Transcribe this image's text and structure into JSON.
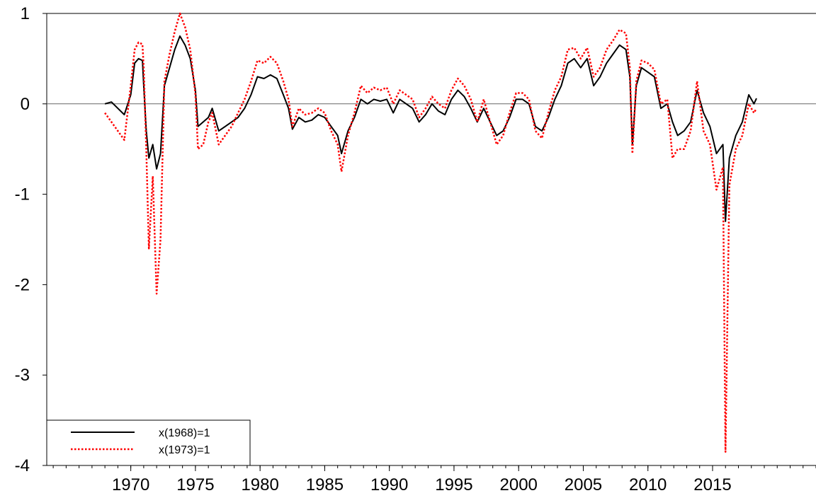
{
  "chart_data": {
    "type": "line",
    "title": "",
    "xlabel": "",
    "ylabel": "",
    "xlim": [
      1963.5,
      2023.0
    ],
    "ylim": [
      -4,
      1
    ],
    "grid": false,
    "zero_line": true,
    "legend_placement": "bottom-left",
    "y_ticks": [
      1,
      0,
      -1,
      -2,
      -3,
      -4
    ],
    "x_ticks": [
      1970,
      1975,
      1980,
      1985,
      1990,
      1995,
      2000,
      2005,
      2010,
      2015
    ],
    "series": [
      {
        "name": "x(1968)=1",
        "color": "#000000",
        "style": "solid",
        "points": [
          [
            1968.0,
            0.0
          ],
          [
            1968.5,
            0.02
          ],
          [
            1969.0,
            -0.05
          ],
          [
            1969.5,
            -0.12
          ],
          [
            1970.0,
            0.1
          ],
          [
            1970.3,
            0.45
          ],
          [
            1970.6,
            0.5
          ],
          [
            1970.9,
            0.48
          ],
          [
            1971.0,
            0.2
          ],
          [
            1971.2,
            -0.3
          ],
          [
            1971.4,
            -0.6
          ],
          [
            1971.7,
            -0.45
          ],
          [
            1972.0,
            -0.72
          ],
          [
            1972.3,
            -0.55
          ],
          [
            1972.6,
            0.2
          ],
          [
            1973.0,
            0.4
          ],
          [
            1973.4,
            0.6
          ],
          [
            1973.8,
            0.75
          ],
          [
            1974.2,
            0.65
          ],
          [
            1974.6,
            0.5
          ],
          [
            1975.0,
            0.15
          ],
          [
            1975.2,
            -0.25
          ],
          [
            1975.6,
            -0.2
          ],
          [
            1976.0,
            -0.15
          ],
          [
            1976.3,
            -0.05
          ],
          [
            1976.8,
            -0.3
          ],
          [
            1977.3,
            -0.25
          ],
          [
            1977.8,
            -0.2
          ],
          [
            1978.3,
            -0.15
          ],
          [
            1978.8,
            -0.05
          ],
          [
            1979.3,
            0.1
          ],
          [
            1979.8,
            0.3
          ],
          [
            1980.3,
            0.28
          ],
          [
            1980.8,
            0.32
          ],
          [
            1981.3,
            0.28
          ],
          [
            1981.8,
            0.1
          ],
          [
            1982.2,
            -0.05
          ],
          [
            1982.5,
            -0.28
          ],
          [
            1983.0,
            -0.15
          ],
          [
            1983.5,
            -0.2
          ],
          [
            1984.0,
            -0.18
          ],
          [
            1984.5,
            -0.12
          ],
          [
            1985.0,
            -0.15
          ],
          [
            1985.5,
            -0.25
          ],
          [
            1986.0,
            -0.35
          ],
          [
            1986.3,
            -0.55
          ],
          [
            1986.8,
            -0.3
          ],
          [
            1987.3,
            -0.15
          ],
          [
            1987.8,
            0.05
          ],
          [
            1988.3,
            0.0
          ],
          [
            1988.8,
            0.05
          ],
          [
            1989.3,
            0.03
          ],
          [
            1989.8,
            0.05
          ],
          [
            1990.3,
            -0.1
          ],
          [
            1990.8,
            0.05
          ],
          [
            1991.3,
            0.0
          ],
          [
            1991.8,
            -0.05
          ],
          [
            1992.3,
            -0.2
          ],
          [
            1992.8,
            -0.12
          ],
          [
            1993.3,
            0.0
          ],
          [
            1993.8,
            -0.08
          ],
          [
            1994.3,
            -0.12
          ],
          [
            1994.8,
            0.05
          ],
          [
            1995.3,
            0.15
          ],
          [
            1995.8,
            0.08
          ],
          [
            1996.3,
            -0.05
          ],
          [
            1996.8,
            -0.2
          ],
          [
            1997.3,
            -0.05
          ],
          [
            1997.8,
            -0.2
          ],
          [
            1998.3,
            -0.35
          ],
          [
            1998.8,
            -0.3
          ],
          [
            1999.3,
            -0.15
          ],
          [
            1999.8,
            0.05
          ],
          [
            2000.3,
            0.05
          ],
          [
            2000.8,
            0.0
          ],
          [
            2001.3,
            -0.25
          ],
          [
            2001.8,
            -0.3
          ],
          [
            2002.3,
            -0.15
          ],
          [
            2002.8,
            0.05
          ],
          [
            2003.3,
            0.2
          ],
          [
            2003.8,
            0.45
          ],
          [
            2004.3,
            0.5
          ],
          [
            2004.8,
            0.4
          ],
          [
            2005.3,
            0.5
          ],
          [
            2005.8,
            0.2
          ],
          [
            2006.3,
            0.3
          ],
          [
            2006.8,
            0.45
          ],
          [
            2007.3,
            0.55
          ],
          [
            2007.8,
            0.65
          ],
          [
            2008.3,
            0.6
          ],
          [
            2008.6,
            0.3
          ],
          [
            2008.8,
            -0.45
          ],
          [
            2009.1,
            0.2
          ],
          [
            2009.5,
            0.4
          ],
          [
            2010.0,
            0.35
          ],
          [
            2010.5,
            0.3
          ],
          [
            2011.0,
            -0.05
          ],
          [
            2011.5,
            0.0
          ],
          [
            2011.9,
            -0.2
          ],
          [
            2012.3,
            -0.35
          ],
          [
            2012.8,
            -0.3
          ],
          [
            2013.3,
            -0.2
          ],
          [
            2013.8,
            0.15
          ],
          [
            2014.3,
            -0.1
          ],
          [
            2014.8,
            -0.25
          ],
          [
            2015.3,
            -0.55
          ],
          [
            2015.8,
            -0.45
          ],
          [
            2016.0,
            -1.3
          ],
          [
            2016.3,
            -0.6
          ],
          [
            2016.8,
            -0.35
          ],
          [
            2017.3,
            -0.2
          ],
          [
            2017.8,
            0.1
          ],
          [
            2018.2,
            0.0
          ],
          [
            2018.4,
            0.06
          ]
        ]
      },
      {
        "name": "x(1973)=1",
        "color": "#ff0000",
        "style": "dotted",
        "points": [
          [
            1968.0,
            -0.1
          ],
          [
            1968.5,
            -0.2
          ],
          [
            1969.0,
            -0.3
          ],
          [
            1969.5,
            -0.4
          ],
          [
            1970.0,
            0.2
          ],
          [
            1970.3,
            0.6
          ],
          [
            1970.6,
            0.68
          ],
          [
            1970.9,
            0.66
          ],
          [
            1971.0,
            0.4
          ],
          [
            1971.2,
            -0.5
          ],
          [
            1971.4,
            -1.6
          ],
          [
            1971.7,
            -0.8
          ],
          [
            1972.0,
            -2.1
          ],
          [
            1972.3,
            -1.5
          ],
          [
            1972.6,
            0.25
          ],
          [
            1973.0,
            0.55
          ],
          [
            1973.4,
            0.8
          ],
          [
            1973.8,
            1.0
          ],
          [
            1974.2,
            0.85
          ],
          [
            1974.6,
            0.6
          ],
          [
            1975.0,
            0.1
          ],
          [
            1975.2,
            -0.5
          ],
          [
            1975.6,
            -0.45
          ],
          [
            1976.0,
            -0.2
          ],
          [
            1976.3,
            -0.1
          ],
          [
            1976.8,
            -0.45
          ],
          [
            1977.3,
            -0.35
          ],
          [
            1977.8,
            -0.25
          ],
          [
            1978.3,
            -0.1
          ],
          [
            1978.8,
            0.05
          ],
          [
            1979.3,
            0.25
          ],
          [
            1979.8,
            0.48
          ],
          [
            1980.3,
            0.45
          ],
          [
            1980.8,
            0.52
          ],
          [
            1981.3,
            0.45
          ],
          [
            1981.8,
            0.25
          ],
          [
            1982.2,
            0.05
          ],
          [
            1982.5,
            -0.25
          ],
          [
            1983.0,
            -0.05
          ],
          [
            1983.5,
            -0.12
          ],
          [
            1984.0,
            -0.1
          ],
          [
            1984.5,
            -0.05
          ],
          [
            1985.0,
            -0.1
          ],
          [
            1985.5,
            -0.3
          ],
          [
            1986.0,
            -0.45
          ],
          [
            1986.3,
            -0.75
          ],
          [
            1986.8,
            -0.35
          ],
          [
            1987.3,
            -0.1
          ],
          [
            1987.8,
            0.2
          ],
          [
            1988.3,
            0.12
          ],
          [
            1988.8,
            0.18
          ],
          [
            1989.3,
            0.15
          ],
          [
            1989.8,
            0.18
          ],
          [
            1990.3,
            0.0
          ],
          [
            1990.8,
            0.15
          ],
          [
            1991.3,
            0.1
          ],
          [
            1991.8,
            0.05
          ],
          [
            1992.3,
            -0.15
          ],
          [
            1992.8,
            -0.05
          ],
          [
            1993.3,
            0.08
          ],
          [
            1993.8,
            0.0
          ],
          [
            1994.3,
            -0.05
          ],
          [
            1994.8,
            0.15
          ],
          [
            1995.3,
            0.28
          ],
          [
            1995.8,
            0.2
          ],
          [
            1996.3,
            0.05
          ],
          [
            1996.8,
            -0.2
          ],
          [
            1997.3,
            0.05
          ],
          [
            1997.8,
            -0.2
          ],
          [
            1998.3,
            -0.45
          ],
          [
            1998.8,
            -0.35
          ],
          [
            1999.3,
            -0.1
          ],
          [
            1999.8,
            0.12
          ],
          [
            2000.3,
            0.12
          ],
          [
            2000.8,
            0.05
          ],
          [
            2001.3,
            -0.3
          ],
          [
            2001.8,
            -0.38
          ],
          [
            2002.3,
            -0.1
          ],
          [
            2002.8,
            0.15
          ],
          [
            2003.3,
            0.3
          ],
          [
            2003.8,
            0.6
          ],
          [
            2004.3,
            0.62
          ],
          [
            2004.8,
            0.5
          ],
          [
            2005.3,
            0.62
          ],
          [
            2005.8,
            0.3
          ],
          [
            2006.3,
            0.4
          ],
          [
            2006.8,
            0.6
          ],
          [
            2007.3,
            0.7
          ],
          [
            2007.8,
            0.82
          ],
          [
            2008.3,
            0.78
          ],
          [
            2008.6,
            0.4
          ],
          [
            2008.8,
            -0.55
          ],
          [
            2009.1,
            0.25
          ],
          [
            2009.5,
            0.48
          ],
          [
            2010.0,
            0.45
          ],
          [
            2010.5,
            0.38
          ],
          [
            2011.0,
            0.0
          ],
          [
            2011.5,
            0.05
          ],
          [
            2011.9,
            -0.6
          ],
          [
            2012.3,
            -0.5
          ],
          [
            2012.8,
            -0.5
          ],
          [
            2013.3,
            -0.3
          ],
          [
            2013.8,
            0.25
          ],
          [
            2014.3,
            -0.3
          ],
          [
            2014.8,
            -0.45
          ],
          [
            2015.3,
            -0.95
          ],
          [
            2015.8,
            -0.7
          ],
          [
            2016.0,
            -3.85
          ],
          [
            2016.3,
            -0.9
          ],
          [
            2016.8,
            -0.5
          ],
          [
            2017.3,
            -0.35
          ],
          [
            2017.8,
            0.0
          ],
          [
            2018.2,
            -0.1
          ],
          [
            2018.4,
            -0.05
          ]
        ]
      }
    ]
  }
}
